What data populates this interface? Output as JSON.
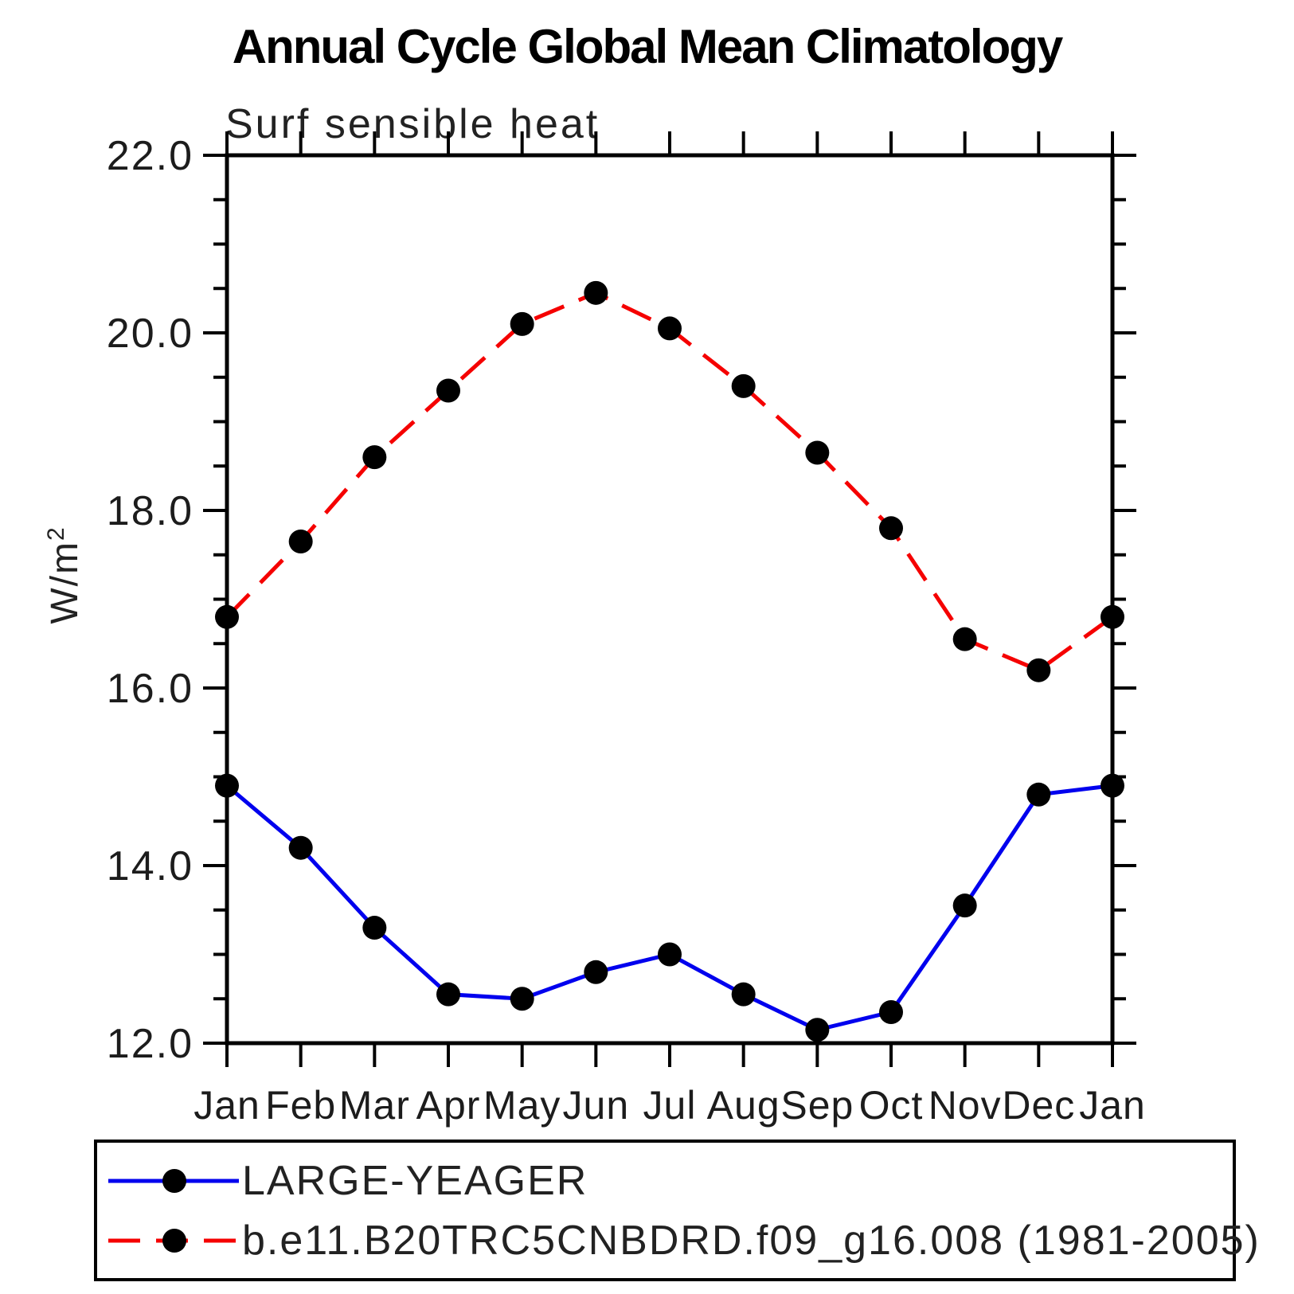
{
  "title": "Annual Cycle Global Mean Climatology",
  "subtitle": "Surf sensible heat",
  "y_axis": {
    "label_base": "W/m",
    "label_sup": "2"
  },
  "chart_data": {
    "type": "line",
    "title": "Annual Cycle Global Mean Climatology",
    "subtitle": "Surf sensible heat",
    "xlabel": "",
    "ylabel": "W/m2",
    "grid": false,
    "legend_position": "bottom",
    "categories": [
      "Jan",
      "Feb",
      "Mar",
      "Apr",
      "May",
      "Jun",
      "Jul",
      "Aug",
      "Sep",
      "Oct",
      "Nov",
      "Dec",
      "Jan"
    ],
    "ylim": [
      12.0,
      22.0
    ],
    "ytick_major_step": 2.0,
    "ytick_minor_step": 0.5,
    "ytick_labels": [
      "12.0",
      "14.0",
      "16.0",
      "18.0",
      "20.0",
      "22.0"
    ],
    "marker": "filled-circle",
    "marker_color": "#000000",
    "series": [
      {
        "name": "LARGE-YEAGER",
        "color": "#0000ee",
        "style": "solid",
        "values": [
          14.9,
          14.2,
          13.3,
          12.55,
          12.5,
          12.8,
          13.0,
          12.55,
          12.15,
          12.35,
          13.55,
          14.8,
          14.9
        ]
      },
      {
        "name": "b.e11.B20TRC5CNBDRD.f09_g16.008 (1981-2005)",
        "color": "#f50000",
        "style": "dashed",
        "values": [
          16.8,
          17.65,
          18.6,
          19.35,
          20.1,
          20.45,
          20.05,
          19.4,
          18.65,
          17.8,
          16.55,
          16.2,
          16.8
        ]
      }
    ]
  }
}
